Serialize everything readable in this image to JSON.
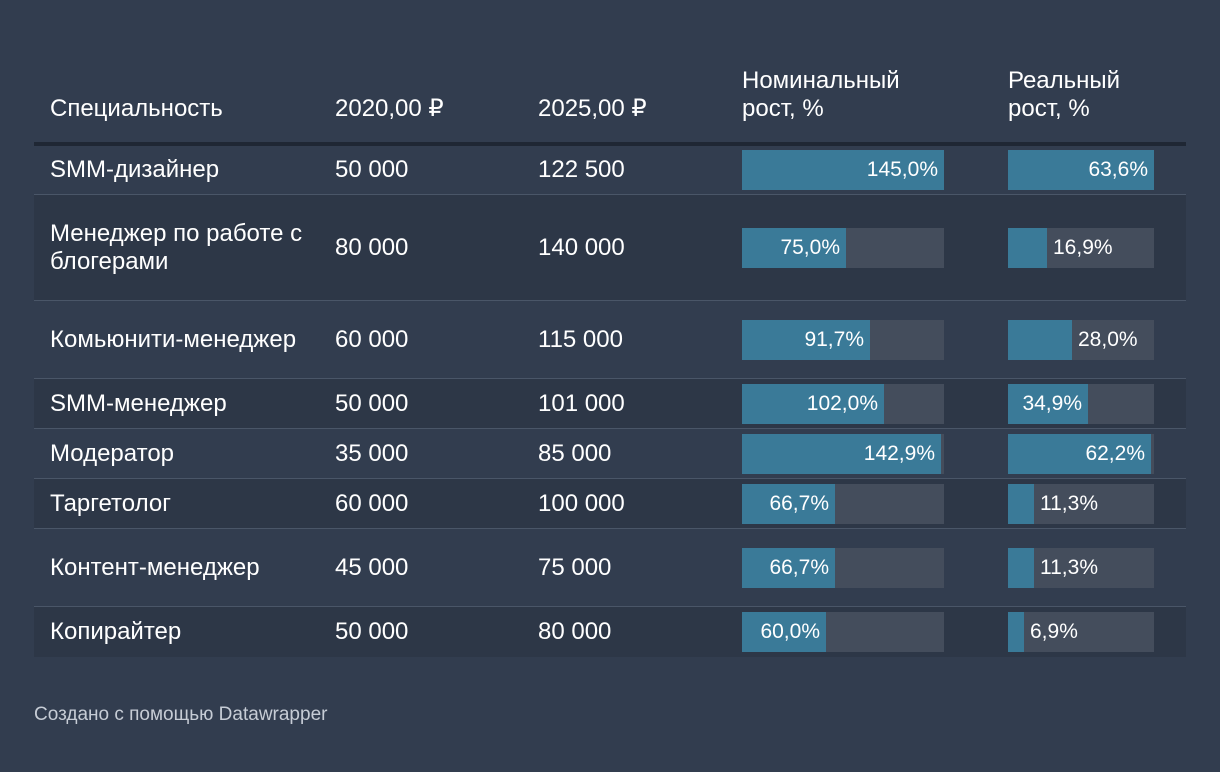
{
  "colors": {
    "background": "#323d4f",
    "bar_track": "#444d5c",
    "bar_fill": "#3a7a98",
    "header_rule": "#1f2734"
  },
  "header": {
    "specialty": "Специальность",
    "y2020": "2020,00 ₽",
    "y2025": "2025,00 ₽",
    "nominal_line1": "Номинальный",
    "nominal_line2": "рост, %",
    "real_line1": "Реальный",
    "real_line2": "рост, %"
  },
  "footer": "Создано с помощью Datawrapper",
  "chart_data": {
    "type": "table",
    "columns": [
      "Специальность",
      "2020,00 ₽",
      "2025,00 ₽",
      "Номинальный рост, %",
      "Реальный рост, %"
    ],
    "nominal_max": 145.0,
    "real_max": 63.6,
    "rows": [
      {
        "specialty": "SMM-дизайнер",
        "y2020": "50 000",
        "y2025": "122 500",
        "nominal": 145.0,
        "nominal_label": "145,0%",
        "real": 63.6,
        "real_label": "63,6%"
      },
      {
        "specialty": "Менеджер по работе с блогерами",
        "y2020": "80 000",
        "y2025": "140 000",
        "nominal": 75.0,
        "nominal_label": "75,0%",
        "real": 16.9,
        "real_label": "16,9%"
      },
      {
        "specialty": "Комьюнити-менеджер",
        "y2020": "60 000",
        "y2025": "115 000",
        "nominal": 91.7,
        "nominal_label": "91,7%",
        "real": 28.0,
        "real_label": "28,0%"
      },
      {
        "specialty": "SMM-менеджер",
        "y2020": "50 000",
        "y2025": "101 000",
        "nominal": 102.0,
        "nominal_label": "102,0%",
        "real": 34.9,
        "real_label": "34,9%"
      },
      {
        "specialty": "Модератор",
        "y2020": "35 000",
        "y2025": "85 000",
        "nominal": 142.9,
        "nominal_label": "142,9%",
        "real": 62.2,
        "real_label": "62,2%"
      },
      {
        "specialty": "Таргетолог",
        "y2020": "60 000",
        "y2025": "100 000",
        "nominal": 66.7,
        "nominal_label": "66,7%",
        "real": 11.3,
        "real_label": "11,3%"
      },
      {
        "specialty": "Контент-менеджер",
        "y2020": "45 000",
        "y2025": "75 000",
        "nominal": 66.7,
        "nominal_label": "66,7%",
        "real": 11.3,
        "real_label": "11,3%"
      },
      {
        "specialty": "Копирайтер",
        "y2020": "50 000",
        "y2025": "80 000",
        "nominal": 60.0,
        "nominal_label": "60,0%",
        "real": 6.9,
        "real_label": "6,9%"
      }
    ]
  }
}
